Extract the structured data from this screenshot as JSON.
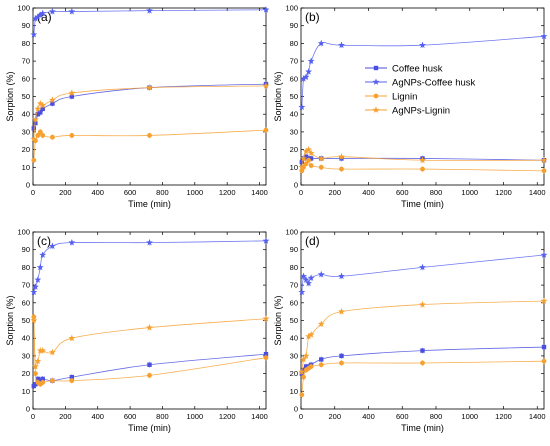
{
  "chart_data": [
    {
      "type": "scatter",
      "panel_label": "(a)",
      "xlabel": "Time (min)",
      "ylabel": "Sorption (%)",
      "xlim": [
        0,
        1440
      ],
      "ylim": [
        0,
        100
      ],
      "xticks": [
        0,
        200,
        400,
        600,
        800,
        1000,
        1200,
        1400
      ],
      "yticks": [
        0,
        10,
        20,
        30,
        40,
        50,
        60,
        70,
        80,
        90,
        100
      ],
      "x": [
        5,
        15,
        30,
        45,
        60,
        120,
        240,
        720,
        1440
      ],
      "series": [
        {
          "name": "Coffee husk",
          "values": [
            32,
            35,
            40,
            41,
            43,
            46,
            50,
            55,
            57
          ]
        },
        {
          "name": "AgNPs-Coffee husk",
          "values": [
            85,
            94,
            95,
            96,
            97,
            98,
            98,
            98.5,
            99
          ]
        },
        {
          "name": "Lignin",
          "values": [
            14,
            25,
            28,
            30,
            28,
            27,
            28,
            28,
            31
          ]
        },
        {
          "name": "AgNPs-Lignin",
          "values": [
            26,
            37,
            43,
            46,
            45,
            48,
            52,
            55,
            56
          ]
        }
      ]
    },
    {
      "type": "scatter",
      "panel_label": "(b)",
      "xlabel": "Time (min)",
      "ylabel": "Sorption (%)",
      "xlim": [
        0,
        1440
      ],
      "ylim": [
        0,
        100
      ],
      "xticks": [
        0,
        200,
        400,
        600,
        800,
        1000,
        1200,
        1400
      ],
      "yticks": [
        0,
        10,
        20,
        30,
        40,
        50,
        60,
        70,
        80,
        90,
        100
      ],
      "legend_position": "right",
      "x": [
        5,
        15,
        30,
        45,
        60,
        120,
        240,
        720,
        1440
      ],
      "series": [
        {
          "name": "Coffee husk",
          "values": [
            13,
            15,
            16,
            15,
            15,
            15,
            15,
            15,
            14
          ]
        },
        {
          "name": "AgNPs-Coffee husk",
          "values": [
            44,
            60,
            61,
            64,
            70,
            80,
            79,
            79,
            84
          ]
        },
        {
          "name": "Lignin",
          "values": [
            8,
            10,
            12,
            14,
            11,
            10,
            9,
            9,
            8
          ]
        },
        {
          "name": "AgNPs-Lignin",
          "values": [
            10,
            15,
            19,
            20,
            18,
            15,
            16,
            14,
            14
          ]
        }
      ]
    },
    {
      "type": "scatter",
      "panel_label": "(c)",
      "xlabel": "Time (min)",
      "ylabel": "Sorption (%)",
      "xlim": [
        0,
        1440
      ],
      "ylim": [
        0,
        100
      ],
      "xticks": [
        0,
        200,
        400,
        600,
        800,
        1000,
        1200,
        1400
      ],
      "yticks": [
        0,
        10,
        20,
        30,
        40,
        50,
        60,
        70,
        80,
        90,
        100
      ],
      "x": [
        5,
        15,
        30,
        45,
        60,
        120,
        240,
        720,
        1440
      ],
      "series": [
        {
          "name": "Coffee husk",
          "values": [
            13,
            14,
            17,
            16,
            17,
            16,
            18,
            25,
            31
          ]
        },
        {
          "name": "AgNPs-Coffee husk",
          "values": [
            66,
            69,
            73,
            80,
            87,
            92,
            94,
            94,
            95
          ]
        },
        {
          "name": "Lignin",
          "values": [
            52,
            20,
            15,
            14,
            15,
            16,
            16,
            19,
            29
          ]
        },
        {
          "name": "AgNPs-Lignin",
          "values": [
            50,
            24,
            27,
            33,
            33,
            32,
            40,
            46,
            51
          ]
        }
      ]
    },
    {
      "type": "scatter",
      "panel_label": "(d)",
      "xlabel": "Time (min)",
      "ylabel": "Sorption (%)",
      "xlim": [
        0,
        1440
      ],
      "ylim": [
        0,
        100
      ],
      "xticks": [
        0,
        200,
        400,
        600,
        800,
        1000,
        1200,
        1400
      ],
      "yticks": [
        0,
        10,
        20,
        30,
        40,
        50,
        60,
        70,
        80,
        90,
        100
      ],
      "x": [
        5,
        15,
        30,
        45,
        60,
        120,
        240,
        720,
        1440
      ],
      "series": [
        {
          "name": "Coffee husk",
          "values": [
            20,
            22,
            24,
            24,
            25,
            28,
            30,
            33,
            35
          ]
        },
        {
          "name": "AgNPs-Coffee husk",
          "values": [
            66,
            75,
            73,
            71,
            74,
            76,
            75,
            80,
            87
          ]
        },
        {
          "name": "Lignin",
          "values": [
            8,
            18,
            22,
            23,
            24,
            25,
            26,
            26,
            27
          ]
        },
        {
          "name": "AgNPs-Lignin",
          "values": [
            21,
            28,
            30,
            41,
            42,
            48,
            55,
            59,
            61
          ]
        }
      ]
    }
  ],
  "series_styles": [
    {
      "name": "Coffee husk",
      "color": "#4a4fe0",
      "marker": "square"
    },
    {
      "name": "AgNPs-Coffee husk",
      "color": "#5560f0",
      "marker": "star"
    },
    {
      "name": "Lignin",
      "color": "#f6a030",
      "marker": "circle"
    },
    {
      "name": "AgNPs-Lignin",
      "color": "#f6a030",
      "marker": "star"
    }
  ]
}
